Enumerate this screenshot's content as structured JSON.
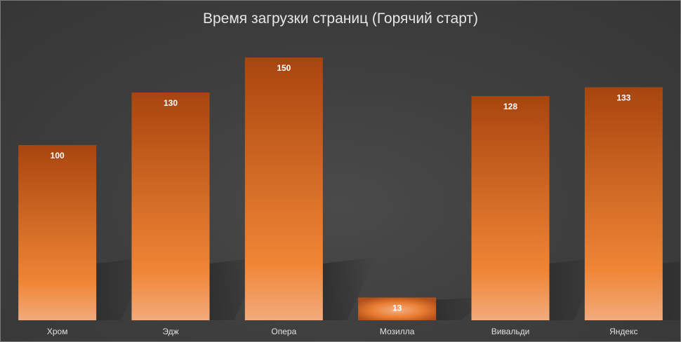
{
  "chart_data": {
    "type": "bar",
    "title": "Время загрузки страниц (Горячий старт)",
    "categories": [
      "Хром",
      "Эдж",
      "Опера",
      "Мозилла",
      "Вивальди",
      "Яндекс"
    ],
    "values": [
      100,
      130,
      150,
      13,
      128,
      133
    ],
    "xlabel": "",
    "ylabel": "",
    "ylim": [
      0,
      150
    ],
    "grid": false,
    "legend": "none",
    "data_labels": true,
    "colors": {
      "bar_top": "#a8450f",
      "bar_mid": "#ef8535",
      "bar_bottom": "#f2ab7c",
      "background": "#3f3f3f",
      "text": "#e0e0e0"
    }
  }
}
